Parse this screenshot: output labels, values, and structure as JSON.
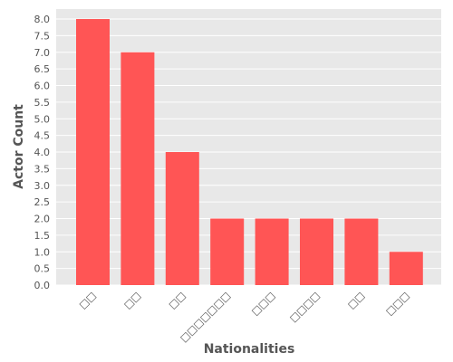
{
  "chart_data": {
    "type": "bar",
    "categories": [
      "□□",
      "□□",
      "□□",
      "□□□□□□□",
      "□□□",
      "□□□□",
      "□□",
      "□□□"
    ],
    "values": [
      8,
      7,
      4,
      2,
      2,
      2,
      2,
      1
    ],
    "xlabel": "Nationalities",
    "ylabel": "Actor Count",
    "ylim": [
      0,
      8.3
    ],
    "yticks": [
      "0.0",
      "0.5",
      "1.0",
      "1.5",
      "2.0",
      "2.5",
      "3.0",
      "3.5",
      "4.0",
      "4.5",
      "5.0",
      "5.5",
      "6.0",
      "6.5",
      "7.0",
      "7.5",
      "8.0"
    ],
    "grid": true,
    "legend": "none",
    "bar_color": "#ff5555",
    "plot_background": "#e8e8e8",
    "grid_color": "#ffffff"
  }
}
